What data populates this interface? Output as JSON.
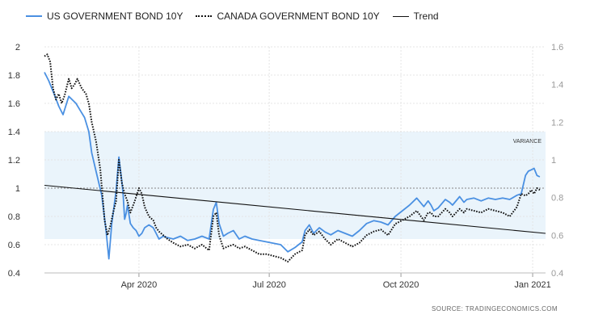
{
  "legend": {
    "us": "US GOVERNMENT BOND 10Y",
    "canada": "CANADA GOVERNMENT BOND 10Y",
    "trend": "Trend"
  },
  "source": "SOURCE:  TRADINGECONOMICS.COM",
  "colors": {
    "us": "#4a90e2",
    "canada": "#111111",
    "trend": "#111111",
    "band": "#eaf4fb"
  },
  "chart_data": {
    "type": "line",
    "x_ticks": [
      "Apr 2020",
      "Jul 2020",
      "Oct 2020",
      "Jan 2021"
    ],
    "x_tick_pos": [
      66,
      157,
      249,
      341
    ],
    "x_range": [
      0,
      350
    ],
    "y_left": {
      "ticks": [
        "0.4",
        "0.6",
        "0.8",
        "1",
        "1.2",
        "1.4",
        "1.6",
        "1.8",
        "2"
      ],
      "range": [
        0.4,
        2.0
      ]
    },
    "y_right": {
      "ticks": [
        "0.4",
        "0.6",
        "0.8",
        "1",
        "1.2",
        "1.4",
        "1.6"
      ],
      "range": [
        0.4,
        1.6
      ]
    },
    "band": {
      "label": "VARIANCE",
      "y_from": 0.64,
      "y_to": 1.4,
      "axis": "left"
    },
    "reference_line": {
      "y": 1.0,
      "axis": "left"
    },
    "series": [
      {
        "name": "US GOVERNMENT BOND 10Y",
        "axis": "left",
        "style": "solid",
        "x": [
          0,
          3,
          7,
          10,
          13,
          17,
          20,
          22,
          25,
          28,
          31,
          33,
          36,
          40,
          43,
          45,
          47,
          50,
          52,
          54,
          55,
          56,
          57,
          58,
          60,
          62,
          64,
          66,
          68,
          70,
          73,
          76,
          78,
          80,
          83,
          86,
          90,
          95,
          100,
          105,
          110,
          115,
          118,
          120,
          122,
          125,
          128,
          132,
          136,
          140,
          145,
          150,
          155,
          160,
          165,
          170,
          175,
          180,
          182,
          185,
          188,
          192,
          196,
          200,
          205,
          210,
          215,
          220,
          225,
          230,
          235,
          240,
          245,
          250,
          255,
          260,
          265,
          268,
          270,
          272,
          275,
          280,
          283,
          285,
          290,
          293,
          295,
          300,
          305,
          310,
          315,
          320,
          325,
          330,
          333,
          336,
          338,
          340,
          342,
          344,
          346
        ],
        "y": [
          1.82,
          1.76,
          1.66,
          1.58,
          1.52,
          1.65,
          1.62,
          1.6,
          1.55,
          1.5,
          1.4,
          1.25,
          1.12,
          0.95,
          0.7,
          0.5,
          0.75,
          0.98,
          1.22,
          1.05,
          0.95,
          0.78,
          0.82,
          0.88,
          0.75,
          0.72,
          0.7,
          0.66,
          0.68,
          0.72,
          0.74,
          0.72,
          0.68,
          0.64,
          0.66,
          0.65,
          0.64,
          0.66,
          0.63,
          0.64,
          0.66,
          0.64,
          0.85,
          0.9,
          0.75,
          0.66,
          0.68,
          0.7,
          0.64,
          0.66,
          0.64,
          0.63,
          0.62,
          0.61,
          0.6,
          0.55,
          0.58,
          0.62,
          0.7,
          0.74,
          0.68,
          0.72,
          0.69,
          0.67,
          0.7,
          0.68,
          0.66,
          0.7,
          0.75,
          0.77,
          0.76,
          0.74,
          0.8,
          0.84,
          0.88,
          0.93,
          0.87,
          0.91,
          0.88,
          0.84,
          0.86,
          0.92,
          0.9,
          0.88,
          0.94,
          0.9,
          0.92,
          0.93,
          0.91,
          0.93,
          0.92,
          0.93,
          0.92,
          0.95,
          0.96,
          1.09,
          1.12,
          1.13,
          1.14,
          1.09,
          1.08
        ]
      },
      {
        "name": "CANADA GOVERNMENT BOND 10Y",
        "axis": "right",
        "style": "dotted",
        "x": [
          0,
          2,
          4,
          6,
          8,
          10,
          12,
          14,
          17,
          19,
          21,
          23,
          26,
          29,
          31,
          33,
          36,
          39,
          42,
          44,
          46,
          48,
          50,
          52,
          54,
          56,
          58,
          60,
          63,
          66,
          68,
          70,
          73,
          76,
          78,
          80,
          83,
          86,
          90,
          95,
          100,
          105,
          110,
          115,
          118,
          120,
          122,
          125,
          128,
          132,
          136,
          140,
          145,
          150,
          155,
          160,
          165,
          170,
          175,
          180,
          182,
          185,
          188,
          192,
          196,
          200,
          205,
          210,
          215,
          220,
          225,
          230,
          235,
          240,
          245,
          250,
          255,
          260,
          265,
          268,
          270,
          272,
          275,
          280,
          283,
          285,
          290,
          293,
          295,
          300,
          305,
          310,
          315,
          320,
          325,
          330,
          333,
          336,
          338,
          340,
          342,
          344,
          346
        ],
        "y": [
          1.55,
          1.56,
          1.52,
          1.38,
          1.32,
          1.35,
          1.3,
          1.34,
          1.43,
          1.38,
          1.4,
          1.43,
          1.38,
          1.35,
          1.3,
          1.2,
          1.1,
          0.95,
          0.68,
          0.6,
          0.65,
          0.72,
          0.78,
          1.0,
          0.88,
          0.82,
          0.78,
          0.72,
          0.78,
          0.85,
          0.82,
          0.75,
          0.7,
          0.68,
          0.64,
          0.62,
          0.6,
          0.58,
          0.56,
          0.54,
          0.55,
          0.53,
          0.55,
          0.52,
          0.7,
          0.72,
          0.6,
          0.53,
          0.54,
          0.55,
          0.53,
          0.54,
          0.52,
          0.5,
          0.5,
          0.49,
          0.48,
          0.46,
          0.5,
          0.52,
          0.6,
          0.63,
          0.6,
          0.62,
          0.58,
          0.55,
          0.58,
          0.56,
          0.54,
          0.56,
          0.6,
          0.62,
          0.63,
          0.6,
          0.66,
          0.68,
          0.7,
          0.73,
          0.68,
          0.72,
          0.72,
          0.7,
          0.7,
          0.74,
          0.72,
          0.7,
          0.74,
          0.72,
          0.74,
          0.73,
          0.72,
          0.74,
          0.73,
          0.72,
          0.7,
          0.75,
          0.82,
          0.81,
          0.82,
          0.84,
          0.82,
          0.85,
          0.84
        ]
      },
      {
        "name": "Trend",
        "axis": "left",
        "style": "solid",
        "x": [
          0,
          350
        ],
        "y": [
          1.02,
          0.68
        ]
      }
    ]
  }
}
